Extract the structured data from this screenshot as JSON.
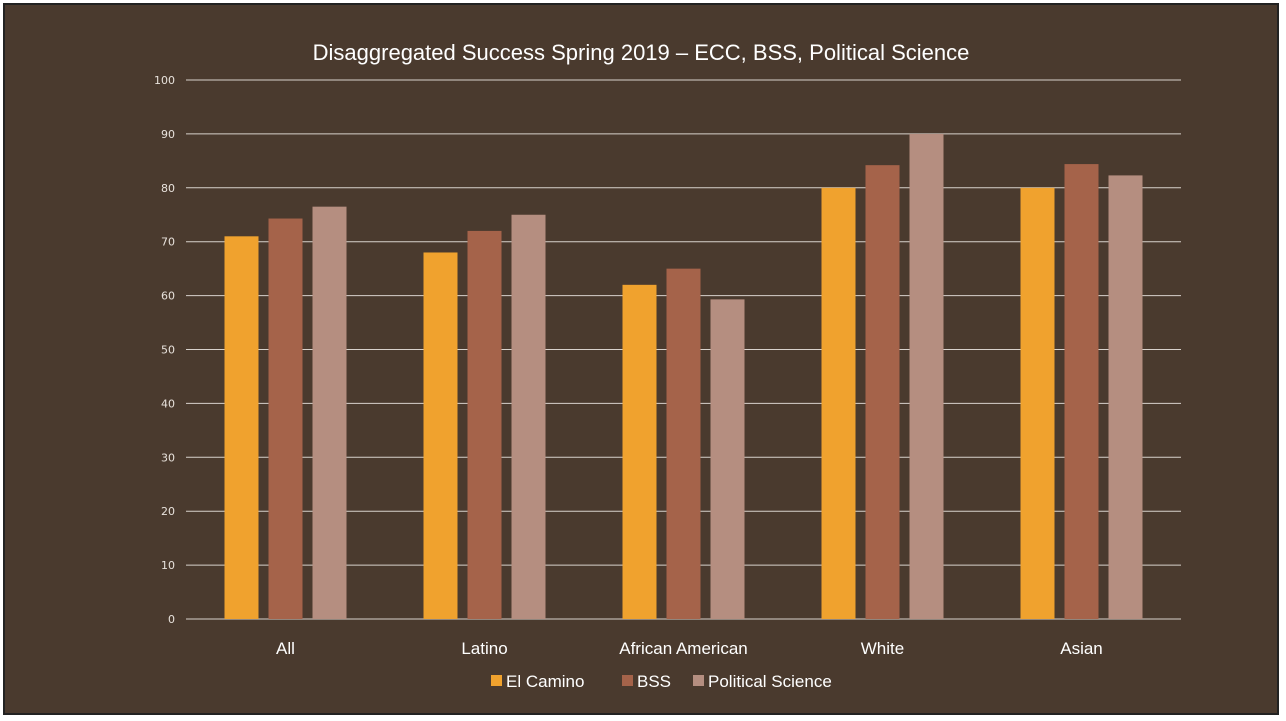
{
  "chart_data": {
    "type": "bar",
    "title": "Disaggregated Success Spring 2019 – ECC, BSS, Political Science",
    "categories": [
      "All",
      "Latino",
      "African American",
      "White",
      "Asian"
    ],
    "series": [
      {
        "name": "El Camino",
        "color": "#f0a22e",
        "values": [
          71,
          68,
          62,
          80,
          80
        ]
      },
      {
        "name": "BSS",
        "color": "#a5634a",
        "values": [
          74.3,
          72,
          65,
          84.2,
          84.4
        ]
      },
      {
        "name": "Political Science",
        "color": "#b58e80",
        "values": [
          76.5,
          75,
          59.3,
          90,
          82.3
        ]
      }
    ],
    "yticks": [
      "0",
      "10",
      "20",
      "30",
      "40",
      "50",
      "60",
      "70",
      "80",
      "90",
      "100"
    ],
    "ylim": [
      0,
      100
    ],
    "grid": true,
    "legend_position": "bottom"
  }
}
